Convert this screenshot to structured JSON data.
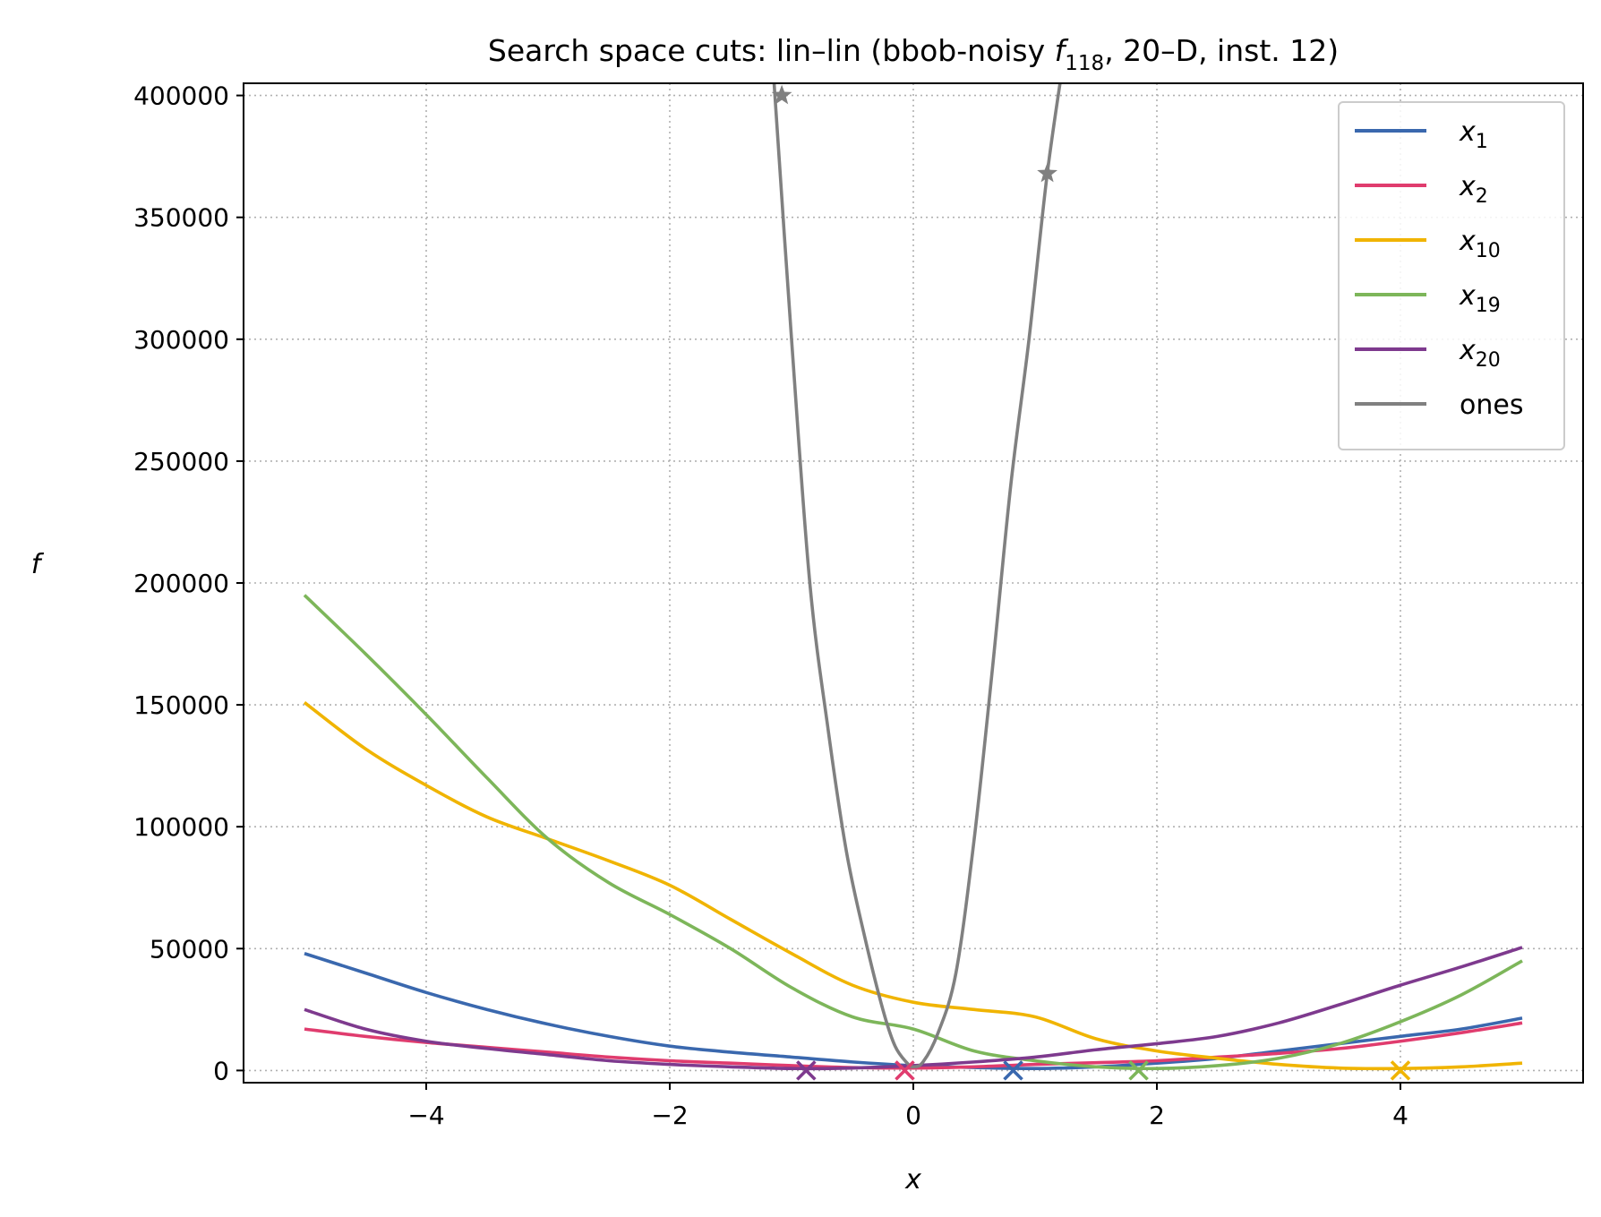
{
  "chart_data": {
    "type": "line",
    "title": "Search space cuts: lin–lin (bbob-noisy f₁₁₈, 20–D, inst. 12)",
    "xlabel": "x",
    "ylabel": "f",
    "xlim": [
      -5.5,
      5.5
    ],
    "ylim": [
      -5000,
      405000
    ],
    "xticks": [
      -4,
      -2,
      0,
      2,
      4
    ],
    "xtick_labels": [
      "−4",
      "−2",
      "0",
      "2",
      "4"
    ],
    "yticks": [
      0,
      50000,
      100000,
      150000,
      200000,
      250000,
      300000,
      350000,
      400000
    ],
    "ytick_labels": [
      "0",
      "50000",
      "100000",
      "150000",
      "200000",
      "250000",
      "300000",
      "350000",
      "400000"
    ],
    "grid": true,
    "legend_position": "top-right",
    "series": [
      {
        "name": "x1",
        "legend_label": "x1",
        "color": "#3A68AE",
        "x": [
          -5,
          -4.5,
          -4,
          -3.5,
          -3,
          -2.5,
          -2,
          -1.5,
          -1,
          -0.5,
          0,
          0.5,
          1,
          1.5,
          2,
          2.5,
          3,
          3.5,
          4,
          4.5,
          5
        ],
        "y": [
          48000,
          40000,
          32000,
          25000,
          19000,
          14000,
          10000,
          7500,
          5500,
          3500,
          2000,
          1200,
          800,
          1500,
          3000,
          5000,
          8000,
          11000,
          14000,
          17000,
          21500
        ],
        "marker_x": 0.82,
        "marker_y": 0,
        "marker": "x"
      },
      {
        "name": "x2",
        "legend_label": "x2",
        "color": "#E03C6E",
        "x": [
          -5,
          -4.5,
          -4,
          -3.5,
          -3,
          -2.5,
          -2,
          -1.5,
          -1,
          -0.5,
          0,
          0.5,
          1,
          1.5,
          2,
          2.5,
          3,
          3.5,
          4,
          4.5,
          5
        ],
        "y": [
          17000,
          14000,
          11500,
          9500,
          7500,
          5500,
          4000,
          3000,
          2000,
          1200,
          1000,
          1500,
          2500,
          3200,
          4000,
          5500,
          7000,
          9000,
          12000,
          15500,
          19500
        ],
        "marker_x": -0.07,
        "marker_y": 0,
        "marker": "x"
      },
      {
        "name": "x10",
        "legend_label": "x10",
        "color": "#F0B400",
        "x": [
          -5,
          -4.5,
          -4,
          -3.5,
          -3,
          -2.5,
          -2,
          -1.5,
          -1,
          -0.5,
          0,
          0.5,
          1,
          1.5,
          2,
          2.5,
          3,
          3.5,
          4,
          4.5,
          5
        ],
        "y": [
          151000,
          132000,
          117000,
          104000,
          95000,
          86000,
          76000,
          62000,
          48000,
          35000,
          28000,
          25000,
          22000,
          13000,
          8000,
          5000,
          2500,
          1000,
          800,
          1500,
          3000
        ],
        "marker_x": 4.0,
        "marker_y": 0,
        "marker": "x"
      },
      {
        "name": "x19",
        "legend_label": "x19",
        "color": "#7DB65A",
        "x": [
          -5,
          -4.5,
          -4,
          -3.5,
          -3,
          -2.5,
          -2,
          -1.5,
          -1,
          -0.5,
          0,
          0.5,
          1,
          1.5,
          2,
          2.5,
          3,
          3.5,
          4,
          4.5,
          5
        ],
        "y": [
          195000,
          171000,
          146000,
          120000,
          95000,
          77000,
          64000,
          50000,
          34000,
          22000,
          17000,
          8000,
          4000,
          1500,
          800,
          2000,
          5000,
          11000,
          20000,
          31000,
          45000
        ],
        "marker_x": 1.85,
        "marker_y": 0,
        "marker": "x"
      },
      {
        "name": "x20",
        "legend_label": "x20",
        "color": "#7E3A8E",
        "x": [
          -5,
          -4.5,
          -4,
          -3.5,
          -3,
          -2.5,
          -2,
          -1.5,
          -1,
          -0.5,
          0,
          0.5,
          1,
          1.5,
          2,
          2.5,
          3,
          3.5,
          4,
          4.5,
          5
        ],
        "y": [
          25000,
          17000,
          12000,
          9000,
          6500,
          4000,
          2500,
          1500,
          800,
          1000,
          2000,
          3500,
          5500,
          8500,
          11000,
          14000,
          19500,
          27000,
          35000,
          42500,
          50500
        ],
        "marker_x": -0.88,
        "marker_y": 0,
        "marker": "x"
      },
      {
        "name": "ones",
        "legend_label": "ones",
        "color": "#808080",
        "x": [
          -1.15,
          -1.0,
          -0.85,
          -0.7,
          -0.55,
          -0.4,
          -0.25,
          -0.15,
          -0.05,
          0.0,
          0.08,
          0.2,
          0.35,
          0.5,
          0.65,
          0.8,
          0.95,
          1.1,
          1.25
        ],
        "y": [
          410000,
          300000,
          200000,
          140000,
          90000,
          55000,
          25000,
          10000,
          3000,
          1500,
          3500,
          15000,
          40000,
          95000,
          165000,
          240000,
          300000,
          368000,
          420000
        ],
        "star_markers": [
          [
            -1.08,
            400000
          ],
          [
            1.1,
            368000
          ]
        ]
      }
    ]
  }
}
